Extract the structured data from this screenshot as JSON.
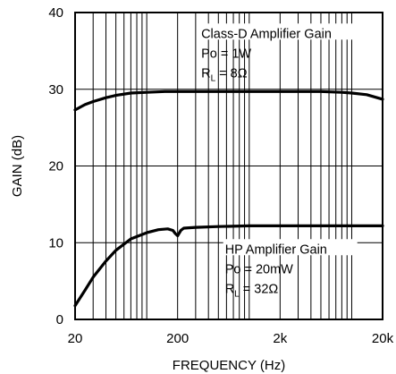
{
  "chart_data": {
    "type": "line",
    "xlabel": "FREQUENCY (Hz)",
    "ylabel": "GAIN (dB)",
    "x_scale": "log",
    "xlim": [
      20,
      20000
    ],
    "ylim": [
      0,
      40
    ],
    "grid": true,
    "x_ticks": [
      {
        "value": 20,
        "label": "20"
      },
      {
        "value": 200,
        "label": "200"
      },
      {
        "value": 2000,
        "label": "2k"
      },
      {
        "value": 20000,
        "label": "20k"
      }
    ],
    "y_ticks": [
      {
        "value": 0,
        "label": "0"
      },
      {
        "value": 10,
        "label": "10"
      },
      {
        "value": 20,
        "label": "20"
      },
      {
        "value": 30,
        "label": "30"
      },
      {
        "value": 40,
        "label": "40"
      }
    ],
    "series": [
      {
        "name": "Class-D Amplifier Gain",
        "x": [
          20,
          25,
          30,
          40,
          50,
          70,
          100,
          150,
          200,
          500,
          1000,
          2000,
          5000,
          8000,
          10000,
          14000,
          20000
        ],
        "y": [
          27.3,
          28.0,
          28.4,
          28.9,
          29.2,
          29.5,
          29.6,
          29.7,
          29.7,
          29.7,
          29.7,
          29.7,
          29.7,
          29.6,
          29.5,
          29.3,
          28.7
        ]
      },
      {
        "name": "HP Amplifier Gain",
        "x": [
          20,
          25,
          30,
          40,
          50,
          70,
          100,
          130,
          160,
          180,
          190,
          200,
          215,
          230,
          300,
          500,
          1000,
          2000,
          5000,
          10000,
          20000
        ],
        "y": [
          1.8,
          3.8,
          5.5,
          7.6,
          9.0,
          10.5,
          11.3,
          11.7,
          11.8,
          11.6,
          11.2,
          10.9,
          11.6,
          11.9,
          12.0,
          12.1,
          12.2,
          12.2,
          12.2,
          12.2,
          12.2
        ]
      }
    ],
    "annotations": {
      "classd": {
        "title": "Class-D Amplifier Gain",
        "line1": "Po = 1W",
        "line2_main": "R",
        "line2_sub": "L",
        "line2_rest": " = 8Ω"
      },
      "hp": {
        "title": "HP Amplifier Gain",
        "line1": "Po = 20mW",
        "line2_main": "R",
        "line2_sub": "L",
        "line2_rest": " = 32Ω"
      }
    }
  }
}
